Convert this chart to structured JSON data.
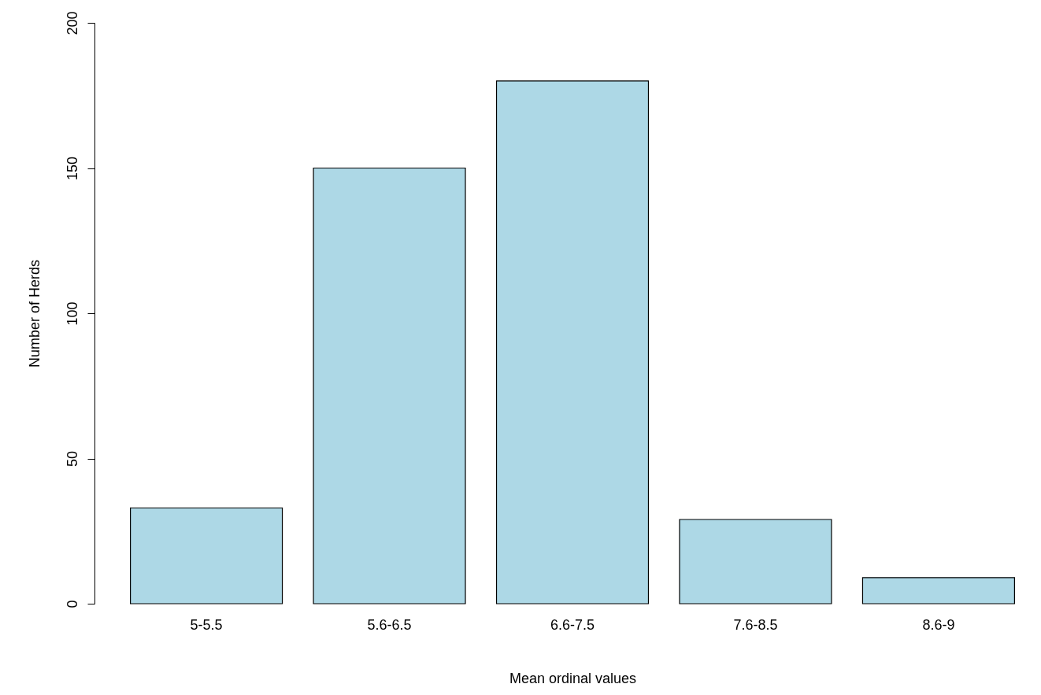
{
  "chart_data": {
    "type": "bar",
    "xlabel": "Mean ordinal values",
    "ylabel": "Number of Herds",
    "categories": [
      "5-5.5",
      "5.6-6.5",
      "6.6-7.5",
      "7.6-8.5",
      "8.6-9"
    ],
    "values": [
      33,
      150,
      180,
      29,
      9
    ],
    "color": "#add8e6",
    "ylim": [
      0,
      200
    ],
    "yticks": [
      0,
      50,
      100,
      150,
      200
    ],
    "grid": false
  }
}
